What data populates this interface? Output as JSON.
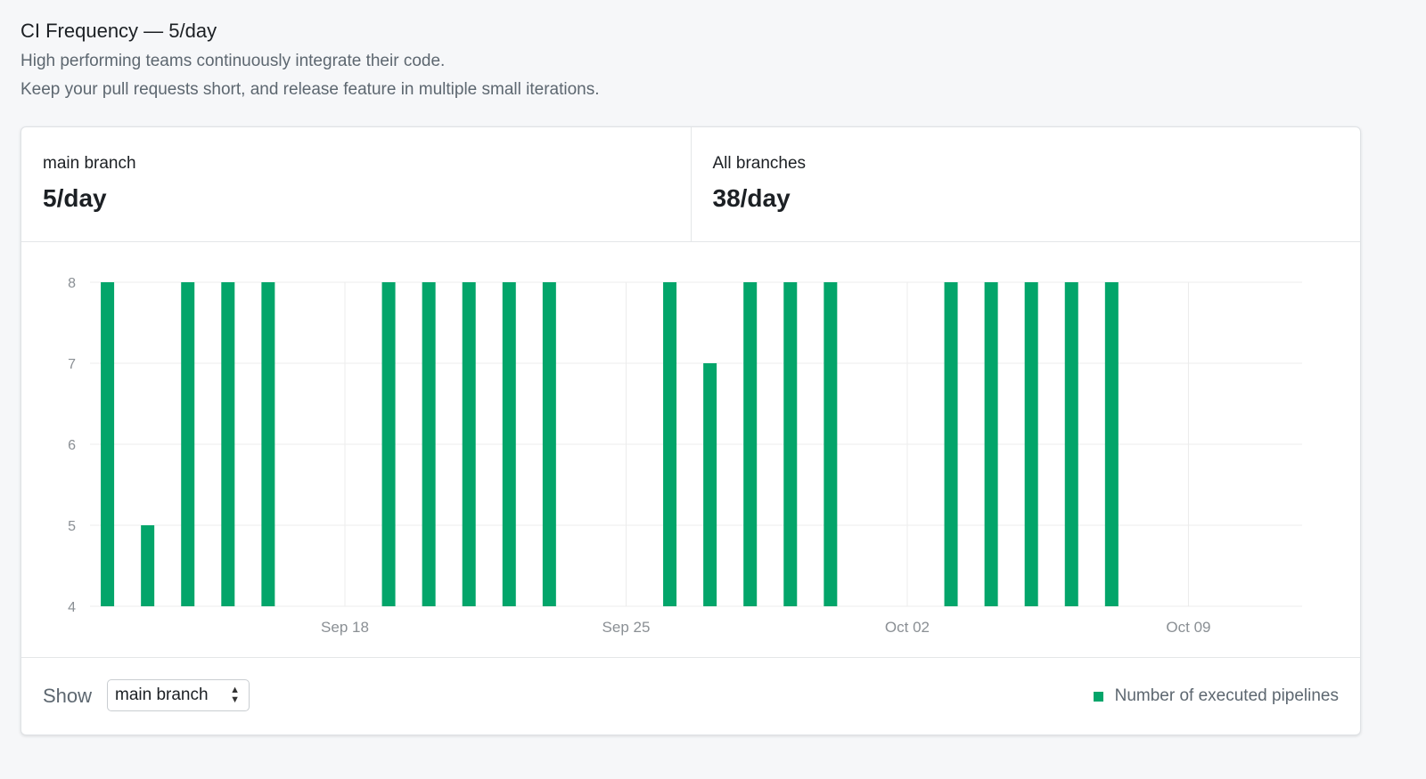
{
  "header": {
    "title": "CI Frequency — 5/day",
    "description_lines": [
      "High performing teams continuously integrate their code.",
      "Keep your pull requests short, and release feature in multiple small iterations."
    ]
  },
  "stats": [
    {
      "label": "main branch",
      "value": "5/day"
    },
    {
      "label": "All branches",
      "value": "38/day"
    }
  ],
  "footer": {
    "show_label": "Show",
    "select_value": "main branch",
    "legend_label": "Number of executed pipelines"
  },
  "colors": {
    "bar": "#03a56a",
    "grid": "#ececec",
    "tick": "#8a8f94"
  },
  "chart_data": {
    "type": "bar",
    "title": "",
    "xlabel": "",
    "ylabel": "",
    "ylim": [
      4,
      8
    ],
    "yticks": [
      "4",
      "5",
      "6",
      "7",
      "8"
    ],
    "xlim": [
      "Sep 11",
      "Oct 12"
    ],
    "xticks": [
      {
        "label": "Sep 18",
        "day": 7
      },
      {
        "label": "Sep 25",
        "day": 14
      },
      {
        "label": "Oct 02",
        "day": 21
      },
      {
        "label": "Oct 09",
        "day": 28
      }
    ],
    "grid": true,
    "legend": "bottom-right",
    "series": [
      {
        "name": "Number of executed pipelines",
        "points": [
          {
            "date": "Sep 12",
            "day": 1,
            "value": 8
          },
          {
            "date": "Sep 13",
            "day": 2,
            "value": 5
          },
          {
            "date": "Sep 14",
            "day": 3,
            "value": 8
          },
          {
            "date": "Sep 15",
            "day": 4,
            "value": 8
          },
          {
            "date": "Sep 16",
            "day": 5,
            "value": 8
          },
          {
            "date": "Sep 19",
            "day": 8,
            "value": 8
          },
          {
            "date": "Sep 20",
            "day": 9,
            "value": 8
          },
          {
            "date": "Sep 21",
            "day": 10,
            "value": 8
          },
          {
            "date": "Sep 22",
            "day": 11,
            "value": 8
          },
          {
            "date": "Sep 23",
            "day": 12,
            "value": 8
          },
          {
            "date": "Sep 26",
            "day": 15,
            "value": 8
          },
          {
            "date": "Sep 27",
            "day": 16,
            "value": 7
          },
          {
            "date": "Sep 28",
            "day": 17,
            "value": 8
          },
          {
            "date": "Sep 29",
            "day": 18,
            "value": 8
          },
          {
            "date": "Sep 30",
            "day": 19,
            "value": 8
          },
          {
            "date": "Oct 03",
            "day": 22,
            "value": 8
          },
          {
            "date": "Oct 04",
            "day": 23,
            "value": 8
          },
          {
            "date": "Oct 05",
            "day": 24,
            "value": 8
          },
          {
            "date": "Oct 06",
            "day": 25,
            "value": 8
          },
          {
            "date": "Oct 07",
            "day": 26,
            "value": 8
          }
        ]
      }
    ]
  }
}
